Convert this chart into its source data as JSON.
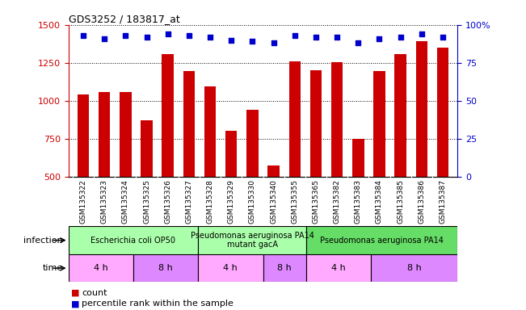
{
  "title": "GDS3252 / 183817_at",
  "samples": [
    "GSM135322",
    "GSM135323",
    "GSM135324",
    "GSM135325",
    "GSM135326",
    "GSM135327",
    "GSM135328",
    "GSM135329",
    "GSM135330",
    "GSM135340",
    "GSM135355",
    "GSM135365",
    "GSM135382",
    "GSM135383",
    "GSM135384",
    "GSM135385",
    "GSM135386",
    "GSM135387"
  ],
  "counts": [
    1040,
    1060,
    1055,
    870,
    1305,
    1195,
    1095,
    800,
    940,
    575,
    1260,
    1200,
    1255,
    750,
    1195,
    1305,
    1390,
    1350
  ],
  "percentiles": [
    93,
    91,
    93,
    92,
    94,
    93,
    92,
    90,
    89,
    88,
    93,
    92,
    92,
    88,
    91,
    92,
    94,
    92
  ],
  "ylim_left": [
    500,
    1500
  ],
  "ylim_right": [
    0,
    100
  ],
  "yticks_left": [
    500,
    750,
    1000,
    1250,
    1500
  ],
  "yticks_right": [
    0,
    25,
    50,
    75,
    100
  ],
  "bar_color": "#cc0000",
  "dot_color": "#0000cc",
  "plot_bg": "#ffffff",
  "xlabel_bg": "#d0d0d0",
  "infection_groups": [
    {
      "label": "Escherichia coli OP50",
      "start": 0,
      "end": 6,
      "color": "#aaffaa"
    },
    {
      "label": "Pseudomonas aeruginosa PA14\nmutant gacA",
      "start": 6,
      "end": 11,
      "color": "#aaffaa"
    },
    {
      "label": "Pseudomonas aeruginosa PA14",
      "start": 11,
      "end": 18,
      "color": "#66dd66"
    }
  ],
  "time_groups": [
    {
      "label": "4 h",
      "start": 0,
      "end": 3,
      "color": "#ffaaff"
    },
    {
      "label": "8 h",
      "start": 3,
      "end": 6,
      "color": "#dd88ff"
    },
    {
      "label": "4 h",
      "start": 6,
      "end": 9,
      "color": "#ffaaff"
    },
    {
      "label": "8 h",
      "start": 9,
      "end": 11,
      "color": "#dd88ff"
    },
    {
      "label": "4 h",
      "start": 11,
      "end": 14,
      "color": "#ffaaff"
    },
    {
      "label": "8 h",
      "start": 14,
      "end": 18,
      "color": "#dd88ff"
    }
  ],
  "legend_count_color": "#cc0000",
  "legend_pct_color": "#0000cc"
}
